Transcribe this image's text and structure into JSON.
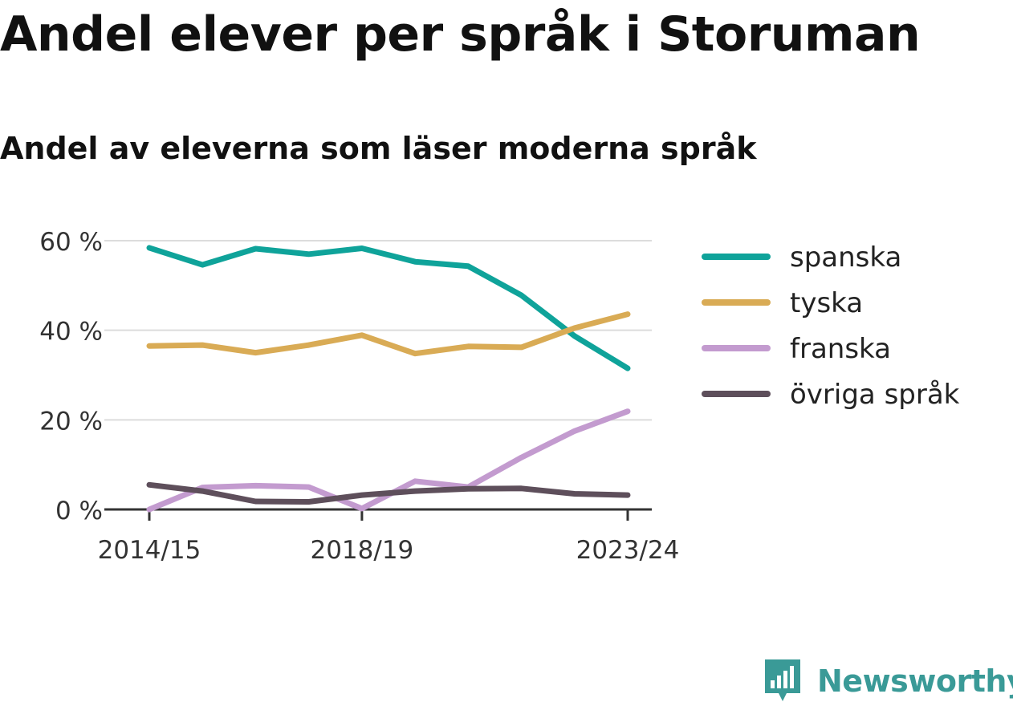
{
  "title": "Andel elever per språk i Storuman",
  "subtitle": "Andel av eleverna som läser moderna språk",
  "brand": {
    "name": "Newsworthy",
    "icon": "newsworthy-logo-icon",
    "color": "#3a9a97"
  },
  "chart_data": {
    "type": "line",
    "x": [
      "2014/15",
      "2015/16",
      "2016/17",
      "2017/18",
      "2018/19",
      "2019/20",
      "2020/21",
      "2021/22",
      "2022/23",
      "2023/24"
    ],
    "x_tick_labels": [
      "2014/15",
      "2018/19",
      "2023/24"
    ],
    "y_ticks": [
      0,
      20,
      40,
      60
    ],
    "y_tick_format": "{v} %",
    "ylim": [
      0,
      62
    ],
    "grid": true,
    "legend_position": "right",
    "series": [
      {
        "name": "spanska",
        "color": "#0fa39a",
        "values": [
          58.4,
          54.6,
          58.2,
          57.0,
          58.3,
          55.3,
          54.3,
          47.8,
          38.7,
          31.5
        ]
      },
      {
        "name": "tyska",
        "color": "#d9ab55",
        "values": [
          36.5,
          36.7,
          35.0,
          36.7,
          38.9,
          34.8,
          36.4,
          36.2,
          40.5,
          43.6
        ]
      },
      {
        "name": "franska",
        "color": "#c39bcf",
        "values": [
          0.0,
          4.9,
          5.3,
          5.0,
          0.2,
          6.3,
          5.0,
          11.6,
          17.5,
          21.9
        ]
      },
      {
        "name": "övriga språk",
        "color": "#5e4f5b",
        "values": [
          5.5,
          4.1,
          1.8,
          1.7,
          3.2,
          4.1,
          4.6,
          4.7,
          3.5,
          3.2
        ]
      }
    ]
  }
}
